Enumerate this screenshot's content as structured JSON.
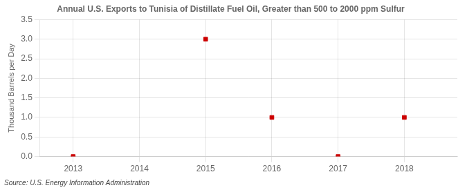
{
  "chart_data": {
    "type": "scatter",
    "title": "Annual U.S. Exports to Tunisia of Distillate Fuel Oil, Greater than 500 to 2000 ppm Sulfur",
    "y_label": "Thousand Barrels per Day",
    "source": "Source: U.S. Energy Information Administration",
    "x": [
      2013,
      2015,
      2016,
      2017,
      2018
    ],
    "values": [
      0.0,
      3.0,
      1.0,
      0.0,
      1.0
    ],
    "color": "#cc0000",
    "marker": "square",
    "xlim": [
      2012.5,
      2018.8
    ],
    "xticks": [
      2013,
      2014,
      2015,
      2016,
      2017,
      2018
    ],
    "ylim": [
      0.0,
      3.5
    ],
    "yticks": [
      {
        "value": 0.0,
        "label": "0.0"
      },
      0.5,
      {
        "value": 1.0,
        "label": "1.0"
      },
      1.5,
      {
        "value": 2.0,
        "label": "2.0"
      },
      2.5,
      {
        "value": 3.0,
        "label": "3.0"
      },
      3.5
    ],
    "grid": true
  }
}
